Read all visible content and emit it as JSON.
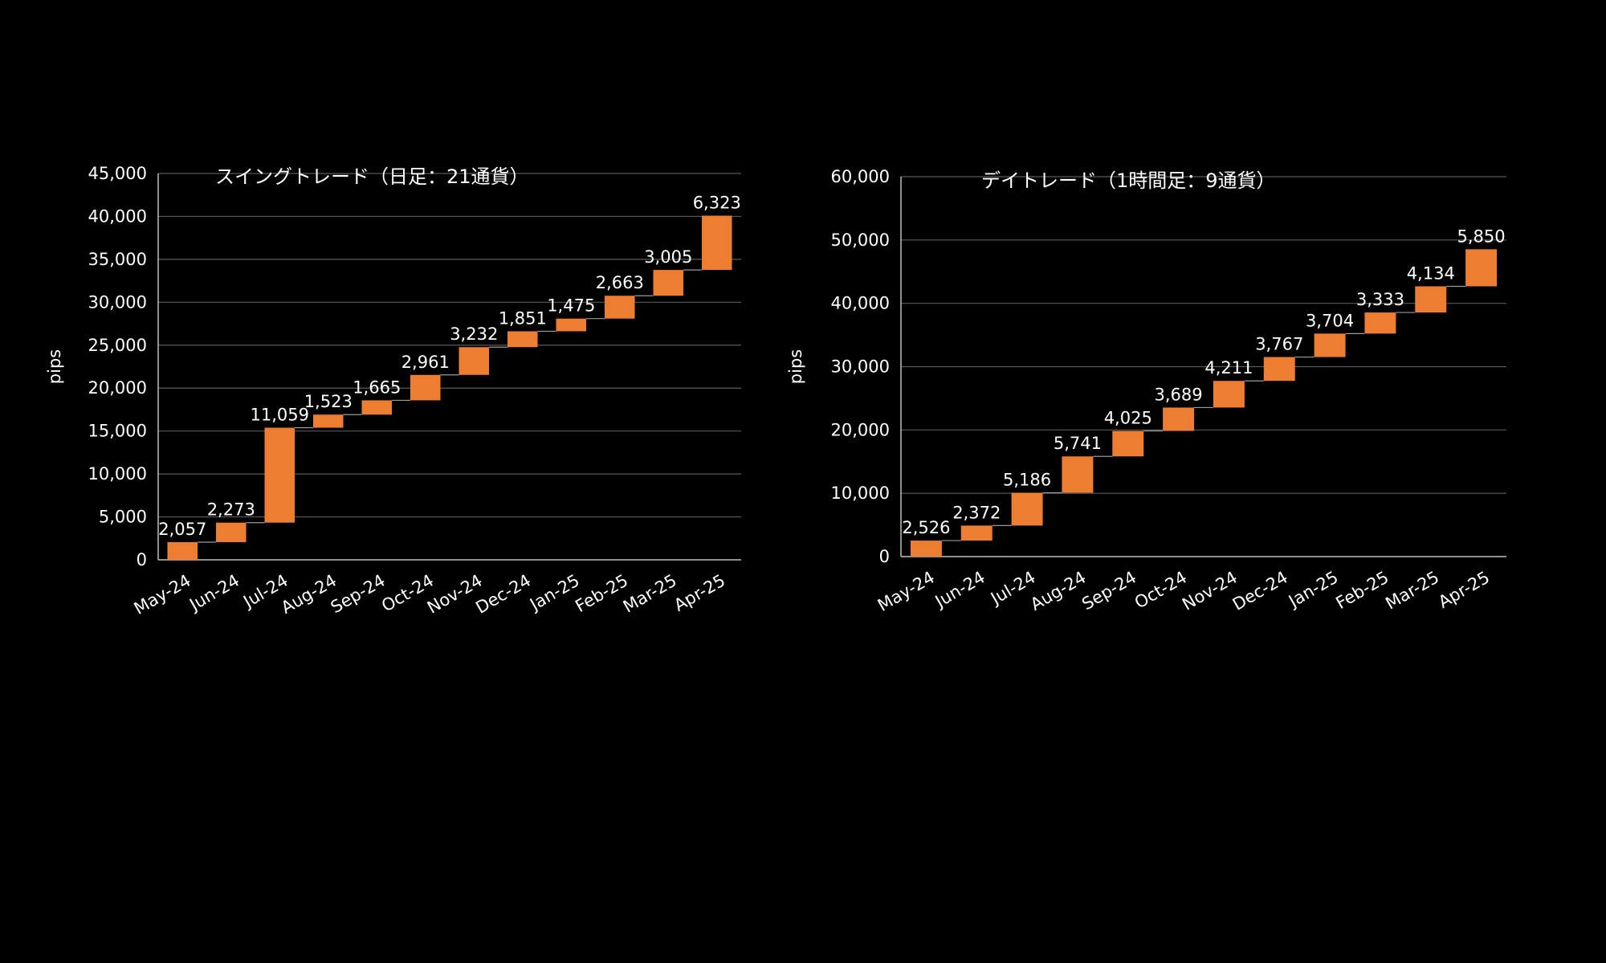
{
  "chart_data": [
    {
      "type": "waterfall",
      "title": "スイングトレード（日足：21通貨）",
      "ylabel": "pips",
      "xlabel": "",
      "categories": [
        "May-24",
        "Jun-24",
        "Jul-24",
        "Aug-24",
        "Sep-24",
        "Oct-24",
        "Nov-24",
        "Dec-24",
        "Jan-25",
        "Feb-25",
        "Mar-25",
        "Apr-25"
      ],
      "values": [
        2057,
        2273,
        11059,
        1523,
        1665,
        2961,
        3232,
        1851,
        1475,
        2663,
        3005,
        6323
      ],
      "data_labels": [
        "2,057",
        "2,273",
        "11,059",
        "1,523",
        "1,665",
        "2,961",
        "3,232",
        "1,851",
        "1,475",
        "2,663",
        "3,005",
        "6,323"
      ],
      "ylim": [
        0,
        45000
      ],
      "yticks": [
        0,
        5000,
        10000,
        15000,
        20000,
        25000,
        30000,
        35000,
        40000,
        45000
      ],
      "ytick_labels": [
        "0",
        "5,000",
        "10,000",
        "15,000",
        "20,000",
        "25,000",
        "30,000",
        "35,000",
        "40,000",
        "45,000"
      ],
      "grid": true,
      "bar_color": "#ED7D31"
    },
    {
      "type": "waterfall",
      "title": "デイトレード（1時間足：9通貨）",
      "ylabel": "pips",
      "xlabel": "",
      "categories": [
        "May-24",
        "Jun-24",
        "Jul-24",
        "Aug-24",
        "Sep-24",
        "Oct-24",
        "Nov-24",
        "Dec-24",
        "Jan-25",
        "Feb-25",
        "Mar-25",
        "Apr-25"
      ],
      "values": [
        2526,
        2372,
        5186,
        5741,
        4025,
        3689,
        4211,
        3767,
        3704,
        3333,
        4134,
        5850
      ],
      "data_labels": [
        "2,526",
        "2,372",
        "5,186",
        "5,741",
        "4,025",
        "3,689",
        "4,211",
        "3,767",
        "3,704",
        "3,333",
        "4,134",
        "5,850"
      ],
      "ylim": [
        0,
        60000
      ],
      "yticks": [
        0,
        10000,
        20000,
        30000,
        40000,
        50000,
        60000
      ],
      "ytick_labels": [
        "0",
        "10,000",
        "20,000",
        "30,000",
        "40,000",
        "50,000",
        "60,000"
      ],
      "grid": true,
      "bar_color": "#ED7D31"
    }
  ]
}
